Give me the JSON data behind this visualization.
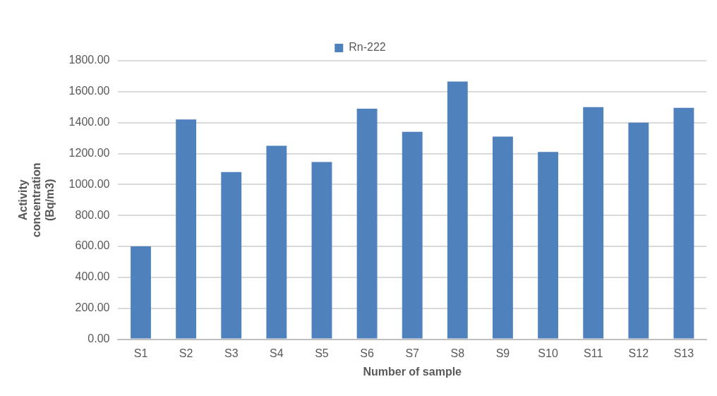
{
  "chart_data": {
    "type": "bar",
    "categories": [
      "S1",
      "S2",
      "S3",
      "S4",
      "S5",
      "S6",
      "S7",
      "S8",
      "S9",
      "S10",
      "S11",
      "S12",
      "S13"
    ],
    "series": [
      {
        "name": "Rn-222",
        "color": "#4f81bd",
        "values": [
          600,
          1420,
          1080,
          1250,
          1145,
          1490,
          1340,
          1665,
          1310,
          1210,
          1500,
          1400,
          1495
        ]
      }
    ],
    "xlabel": "Number of sample",
    "ylabel": "Activity concentration (Bq/m3)",
    "ylim": [
      0,
      1800
    ],
    "yticks": [
      {
        "value": 0,
        "label": "0.00"
      },
      {
        "value": 200,
        "label": "200.00"
      },
      {
        "value": 400,
        "label": "400.00"
      },
      {
        "value": 600,
        "label": "600.00"
      },
      {
        "value": 800,
        "label": "800.00"
      },
      {
        "value": 1000,
        "label": "1000.00"
      },
      {
        "value": 1200,
        "label": "1200.00"
      },
      {
        "value": 1400,
        "label": "1400.00"
      },
      {
        "value": 1600,
        "label": "1600.00"
      },
      {
        "value": 1800,
        "label": "1800.00"
      }
    ],
    "grid": "y",
    "legend": "top"
  }
}
